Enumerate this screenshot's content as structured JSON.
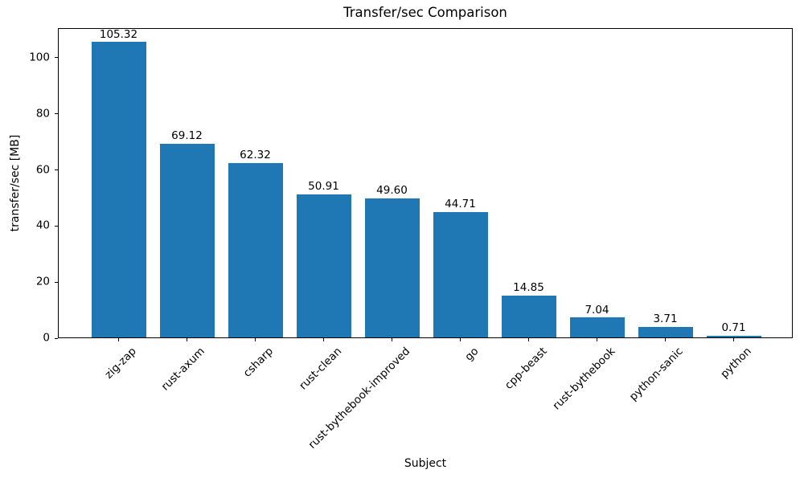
{
  "chart_data": {
    "type": "bar",
    "title": "Transfer/sec Comparison",
    "xlabel": "Subject",
    "ylabel": "transfer/sec [MB]",
    "categories": [
      "zig-zap",
      "rust-axum",
      "csharp",
      "rust-clean",
      "rust-bythebook-improved",
      "go",
      "cpp-beast",
      "rust-bythebook",
      "python-sanic",
      "python"
    ],
    "values": [
      105.32,
      69.12,
      62.32,
      50.91,
      49.6,
      44.71,
      14.85,
      7.04,
      3.71,
      0.71
    ],
    "value_labels": [
      "105.32",
      "69.12",
      "62.32",
      "50.91",
      "49.60",
      "44.71",
      "14.85",
      "7.04",
      "3.71",
      "0.71"
    ],
    "ytick_labels": [
      "0",
      "20",
      "40",
      "60",
      "80",
      "100"
    ],
    "ytick_values": [
      0,
      20,
      40,
      60,
      80,
      100
    ],
    "ylim": [
      0,
      110.6
    ],
    "bar_color": "#1f77b4",
    "text_color": "#000000",
    "background_color": "#ffffff",
    "grid": false,
    "legend": null,
    "xtick_rotation_deg": 45
  }
}
